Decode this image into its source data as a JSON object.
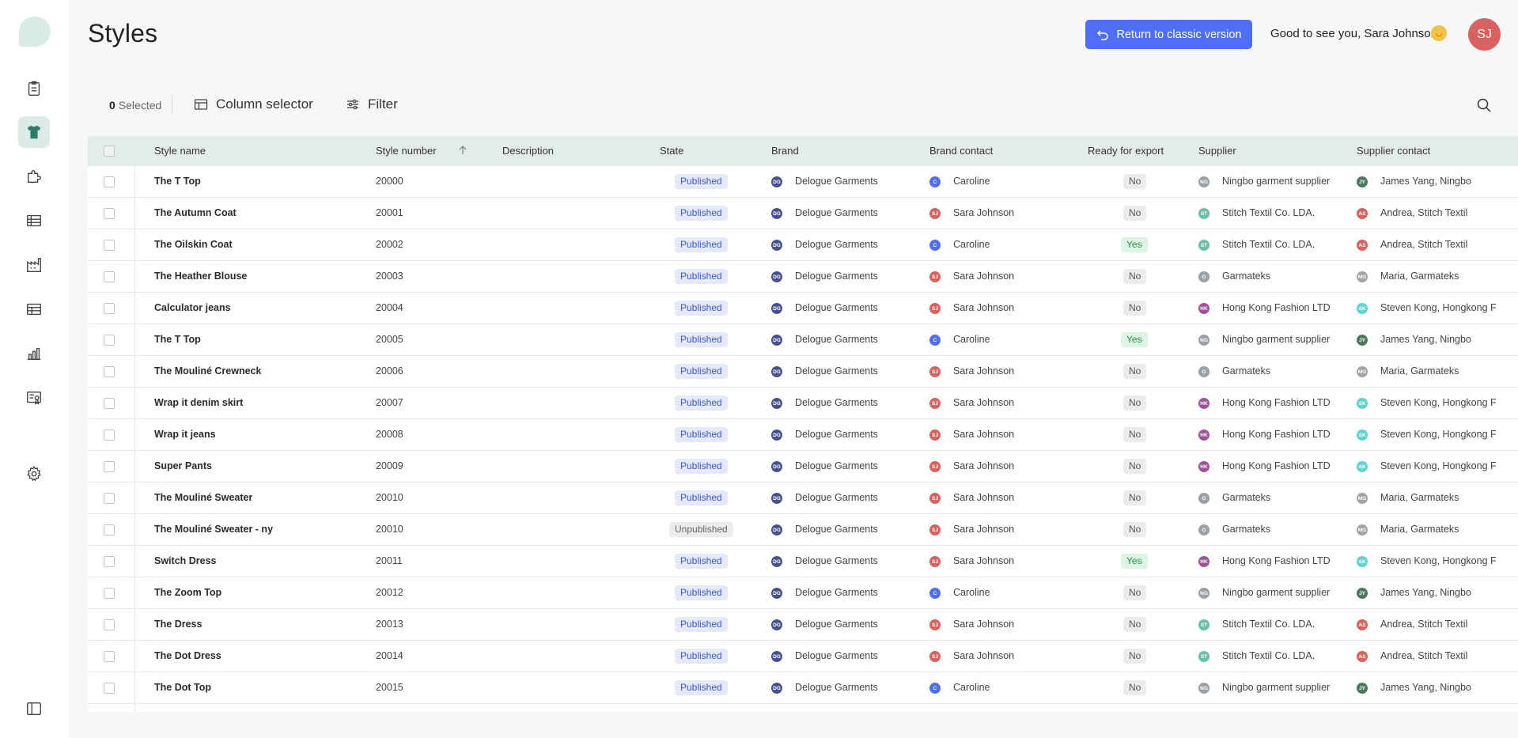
{
  "header": {
    "title": "Styles",
    "return_label": "Return to classic version",
    "greeting": "Good to see you, Sara Johnson",
    "greeting_emoji": "🥳",
    "user_initials": "SJ"
  },
  "toolbar": {
    "selected_count": "0",
    "selected_label": "Selected",
    "column_selector": "Column selector",
    "filter": "Filter"
  },
  "columns": [
    "Style name",
    "Style number",
    "Description",
    "State",
    "Brand",
    "Brand contact",
    "Ready for export",
    "Supplier",
    "Supplier contact"
  ],
  "colors": {
    "accent": "#4d6ef5",
    "sidebar_active": "#dcebe7",
    "header_row": "#e4ece9",
    "avatar": "#d9625e"
  },
  "sidebar_icons": [
    "clipboard-icon",
    "tshirt-icon",
    "puzzle-icon",
    "list-icon",
    "factory-icon",
    "table-icon",
    "bar-chart-icon",
    "certificate-icon",
    "gear-icon",
    "panel-toggle-icon"
  ],
  "rows": [
    {
      "name": "The T Top",
      "number": "20000",
      "description": "",
      "state": "Published",
      "brand": "Delogue Garments",
      "brand_ini": "DG",
      "contact": "Caroline",
      "contact_ini": "C",
      "ready": "No",
      "supplier": "Ningbo garment supplier",
      "supplier_ini": "NG",
      "supplier_contact": "James Yang, Ningbo",
      "sc_ini": "JY"
    },
    {
      "name": "The Autumn Coat",
      "number": "20001",
      "description": "",
      "state": "Published",
      "brand": "Delogue Garments",
      "brand_ini": "DG",
      "contact": "Sara Johnson",
      "contact_ini": "SJ",
      "ready": "No",
      "supplier": "Stitch Textil Co. LDA.",
      "supplier_ini": "ST",
      "supplier_contact": "Andrea, Stitch Textil",
      "sc_ini": "AS"
    },
    {
      "name": "The Oilskin Coat",
      "number": "20002",
      "description": "",
      "state": "Published",
      "brand": "Delogue Garments",
      "brand_ini": "DG",
      "contact": "Caroline",
      "contact_ini": "C",
      "ready": "Yes",
      "supplier": "Stitch Textil Co. LDA.",
      "supplier_ini": "ST",
      "supplier_contact": "Andrea, Stitch Textil",
      "sc_ini": "AS"
    },
    {
      "name": "The Heather Blouse",
      "number": "20003",
      "description": "",
      "state": "Published",
      "brand": "Delogue Garments",
      "brand_ini": "DG",
      "contact": "Sara Johnson",
      "contact_ini": "SJ",
      "ready": "No",
      "supplier": "Garmateks",
      "supplier_ini": "G",
      "supplier_contact": "Maria, Garmateks",
      "sc_ini": "MG"
    },
    {
      "name": "Calculator jeans",
      "number": "20004",
      "description": "",
      "state": "Published",
      "brand": "Delogue Garments",
      "brand_ini": "DG",
      "contact": "Sara Johnson",
      "contact_ini": "SJ",
      "ready": "No",
      "supplier": "Hong Kong Fashion LTD",
      "supplier_ini": "HK",
      "supplier_contact": "Steven Kong, Hongkong F",
      "sc_ini": "SK"
    },
    {
      "name": "The T Top",
      "number": "20005",
      "description": "",
      "state": "Published",
      "brand": "Delogue Garments",
      "brand_ini": "DG",
      "contact": "Caroline",
      "contact_ini": "C",
      "ready": "Yes",
      "supplier": "Ningbo garment supplier",
      "supplier_ini": "NG",
      "supplier_contact": "James Yang, Ningbo",
      "sc_ini": "JY"
    },
    {
      "name": "The Mouliné Crewneck",
      "number": "20006",
      "description": "",
      "state": "Published",
      "brand": "Delogue Garments",
      "brand_ini": "DG",
      "contact": "Sara Johnson",
      "contact_ini": "SJ",
      "ready": "No",
      "supplier": "Garmateks",
      "supplier_ini": "G",
      "supplier_contact": "Maria, Garmateks",
      "sc_ini": "MG"
    },
    {
      "name": "Wrap it denim skirt",
      "number": "20007",
      "description": "",
      "state": "Published",
      "brand": "Delogue Garments",
      "brand_ini": "DG",
      "contact": "Sara Johnson",
      "contact_ini": "SJ",
      "ready": "No",
      "supplier": "Hong Kong Fashion LTD",
      "supplier_ini": "HK",
      "supplier_contact": "Steven Kong, Hongkong F",
      "sc_ini": "SK"
    },
    {
      "name": "Wrap it jeans",
      "number": "20008",
      "description": "",
      "state": "Published",
      "brand": "Delogue Garments",
      "brand_ini": "DG",
      "contact": "Sara Johnson",
      "contact_ini": "SJ",
      "ready": "No",
      "supplier": "Hong Kong Fashion LTD",
      "supplier_ini": "HK",
      "supplier_contact": "Steven Kong, Hongkong F",
      "sc_ini": "SK"
    },
    {
      "name": "Super Pants",
      "number": "20009",
      "description": "",
      "state": "Published",
      "brand": "Delogue Garments",
      "brand_ini": "DG",
      "contact": "Sara Johnson",
      "contact_ini": "SJ",
      "ready": "No",
      "supplier": "Hong Kong Fashion LTD",
      "supplier_ini": "HK",
      "supplier_contact": "Steven Kong, Hongkong F",
      "sc_ini": "SK"
    },
    {
      "name": "The Mouliné Sweater",
      "number": "20010",
      "description": "",
      "state": "Published",
      "brand": "Delogue Garments",
      "brand_ini": "DG",
      "contact": "Sara Johnson",
      "contact_ini": "SJ",
      "ready": "No",
      "supplier": "Garmateks",
      "supplier_ini": "G",
      "supplier_contact": "Maria, Garmateks",
      "sc_ini": "MG"
    },
    {
      "name": "The Mouliné Sweater - ny",
      "number": "20010",
      "description": "",
      "state": "Unpublished",
      "brand": "Delogue Garments",
      "brand_ini": "DG",
      "contact": "Sara Johnson",
      "contact_ini": "SJ",
      "ready": "No",
      "supplier": "Garmateks",
      "supplier_ini": "G",
      "supplier_contact": "Maria, Garmateks",
      "sc_ini": "MG"
    },
    {
      "name": "Switch Dress",
      "number": "20011",
      "description": "",
      "state": "Published",
      "brand": "Delogue Garments",
      "brand_ini": "DG",
      "contact": "Sara Johnson",
      "contact_ini": "SJ",
      "ready": "Yes",
      "supplier": "Hong Kong Fashion LTD",
      "supplier_ini": "HK",
      "supplier_contact": "Steven Kong, Hongkong F",
      "sc_ini": "SK"
    },
    {
      "name": "The Zoom Top",
      "number": "20012",
      "description": "",
      "state": "Published",
      "brand": "Delogue Garments",
      "brand_ini": "DG",
      "contact": "Caroline",
      "contact_ini": "C",
      "ready": "No",
      "supplier": "Ningbo garment supplier",
      "supplier_ini": "NG",
      "supplier_contact": "James Yang, Ningbo",
      "sc_ini": "JY"
    },
    {
      "name": "The Dress",
      "number": "20013",
      "description": "",
      "state": "Published",
      "brand": "Delogue Garments",
      "brand_ini": "DG",
      "contact": "Sara Johnson",
      "contact_ini": "SJ",
      "ready": "No",
      "supplier": "Stitch Textil Co. LDA.",
      "supplier_ini": "ST",
      "supplier_contact": "Andrea, Stitch Textil",
      "sc_ini": "AS"
    },
    {
      "name": "The Dot Dress",
      "number": "20014",
      "description": "",
      "state": "Published",
      "brand": "Delogue Garments",
      "brand_ini": "DG",
      "contact": "Sara Johnson",
      "contact_ini": "SJ",
      "ready": "No",
      "supplier": "Stitch Textil Co. LDA.",
      "supplier_ini": "ST",
      "supplier_contact": "Andrea, Stitch Textil",
      "sc_ini": "AS"
    },
    {
      "name": "The Dot Top",
      "number": "20015",
      "description": "",
      "state": "Published",
      "brand": "Delogue Garments",
      "brand_ini": "DG",
      "contact": "Caroline",
      "contact_ini": "C",
      "ready": "No",
      "supplier": "Ningbo garment supplier",
      "supplier_ini": "NG",
      "supplier_contact": "James Yang, Ningbo",
      "sc_ini": "JY"
    }
  ]
}
